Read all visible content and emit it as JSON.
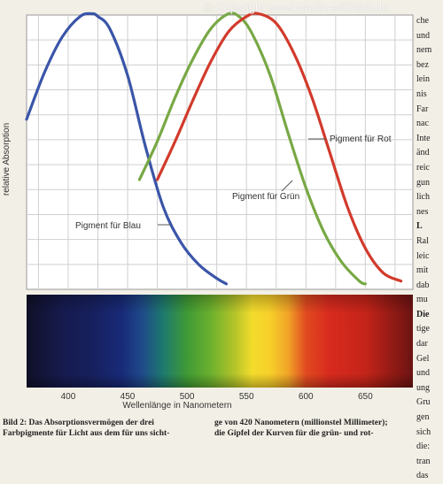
{
  "watermark": "© Copyright www.Martin-Mißfeldt.de",
  "chart_data": {
    "type": "line",
    "title": "",
    "xlabel": "Wellenlänge in Nanometern",
    "ylabel": "relative Absorption",
    "xlim": [
      365,
      690
    ],
    "ylim": [
      0,
      100
    ],
    "xticks": [
      400,
      450,
      500,
      550,
      600,
      650
    ],
    "grid": true,
    "series": [
      {
        "name": "Pigment für Blau",
        "color": "#3a55a8",
        "x": [
          365,
          380,
          395,
          410,
          420,
          425,
          435,
          450,
          465,
          480,
          495,
          510,
          525,
          533
        ],
        "y": [
          62,
          79,
          92,
          99.5,
          100.5,
          99.5,
          95,
          78,
          52,
          30,
          17,
          9,
          4,
          2
        ]
      },
      {
        "name": "Pigment für Grün",
        "color": "#78a845",
        "x": [
          460,
          475,
          490,
          505,
          520,
          535,
          545,
          555,
          570,
          585,
          600,
          615,
          630,
          645,
          650
        ],
        "y": [
          40,
          54,
          70,
          84,
          95,
          100.5,
          99,
          93,
          78,
          57,
          37,
          21,
          10,
          3,
          2
        ]
      },
      {
        "name": "Pigment für Rot",
        "color": "#d23a2b",
        "x": [
          475,
          490,
          505,
          520,
          535,
          550,
          560,
          575,
          590,
          605,
          620,
          635,
          650,
          665,
          680
        ],
        "y": [
          40,
          54,
          69,
          83,
          94,
          99.5,
          100.5,
          97,
          86,
          70,
          50,
          30,
          15,
          6,
          3
        ]
      }
    ],
    "annotations": [
      {
        "text": "Pigment für Rot",
        "series": 2
      },
      {
        "text": "Pigment für Grün",
        "series": 1
      },
      {
        "text": "Pigment für Blau",
        "series": 0
      }
    ]
  },
  "caption": {
    "left": [
      "Bild 2: Das Absorptionsvermögen der drei",
      "Farbpigmente für Licht aus dem für uns sicht-"
    ],
    "right": [
      "ge von 420 Nanometern (millionstel Millimeter);",
      "die Gipfel der Kurven für die grün- und rot-"
    ]
  },
  "side_text": [
    "che",
    "und",
    "nem",
    "bez",
    "lein",
    "nis",
    "Far",
    "nac",
    "Inte",
    "änd",
    "reic",
    "gun",
    "lich",
    "nes",
    "L",
    "Ral",
    "leic",
    "mit",
    "dab",
    "mu",
    "Die",
    "tige",
    "dar",
    "Gel",
    "und",
    "ung",
    "Gru",
    "gen",
    "sich",
    "die:",
    "tran",
    "das"
  ],
  "colors": {
    "background": "#f2efe6",
    "grid": "#cfcfcf"
  }
}
